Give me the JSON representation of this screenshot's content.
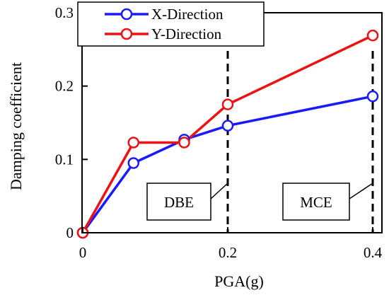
{
  "chart_data": {
    "type": "line",
    "xlabel": "PGA(g)",
    "ylabel": "Damping coefficient",
    "x_ticks": [
      0,
      0.2,
      0.4
    ],
    "x_tick_labels": [
      "0",
      "0.2",
      "0.4"
    ],
    "y_ticks": [
      0,
      0.1,
      0.2,
      0.3
    ],
    "y_tick_labels": [
      "0",
      "0.1",
      "0.2",
      "0.3"
    ],
    "xlim": [
      0,
      0.41
    ],
    "ylim": [
      0,
      0.3
    ],
    "grid": false,
    "legend_position": "top-left",
    "series": [
      {
        "name": "X-Direction",
        "color": "#1a1aff",
        "x": [
          0,
          0.07,
          0.14,
          0.2,
          0.4
        ],
        "y": [
          0,
          0.095,
          0.127,
          0.146,
          0.186
        ]
      },
      {
        "name": "Y-Direction",
        "color": "#ee1111",
        "x": [
          0,
          0.07,
          0.14,
          0.2,
          0.4
        ],
        "y": [
          0,
          0.123,
          0.123,
          0.175,
          0.269
        ]
      }
    ],
    "reference_lines": [
      {
        "x": 0.2,
        "label": "DBE"
      },
      {
        "x": 0.4,
        "label": "MCE"
      }
    ]
  }
}
